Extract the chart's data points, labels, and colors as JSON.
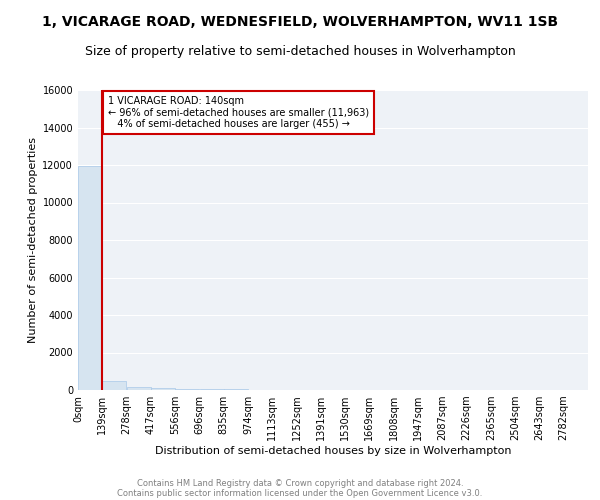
{
  "title": "1, VICARAGE ROAD, WEDNESFIELD, WOLVERHAMPTON, WV11 1SB",
  "subtitle": "Size of property relative to semi-detached houses in Wolverhampton",
  "xlabel": "Distribution of semi-detached houses by size in Wolverhampton",
  "ylabel": "Number of semi-detached properties",
  "footer1": "Contains HM Land Registry data © Crown copyright and database right 2024.",
  "footer2": "Contains public sector information licensed under the Open Government Licence v3.0.",
  "property_size": 140,
  "pct_smaller": 96,
  "count_smaller": 11963,
  "pct_larger": 4,
  "count_larger": 455,
  "bar_color": "#d6e4f0",
  "bar_edge_color": "#a8c8e8",
  "highlight_color": "#cc0000",
  "annotation_box_color": "#cc0000",
  "bin_width": 139,
  "bin_starts": [
    0,
    139,
    278,
    417,
    556,
    696,
    835,
    974,
    1113,
    1252,
    1391,
    1530,
    1669,
    1808,
    1947,
    2086,
    2225,
    2365,
    2504,
    2643
  ],
  "bin_labels": [
    "0sqm",
    "139sqm",
    "278sqm",
    "417sqm",
    "556sqm",
    "696sqm",
    "835sqm",
    "974sqm",
    "1113sqm",
    "1252sqm",
    "1391sqm",
    "1530sqm",
    "1669sqm",
    "1808sqm",
    "1947sqm",
    "2087sqm",
    "2226sqm",
    "2365sqm",
    "2504sqm",
    "2643sqm",
    "2782sqm"
  ],
  "bin_counts": [
    11963,
    455,
    180,
    120,
    80,
    50,
    35,
    25,
    18,
    14,
    10,
    8,
    6,
    5,
    4,
    3,
    3,
    2,
    2,
    1
  ],
  "ylim": [
    0,
    16000
  ],
  "xlim": [
    0,
    2921
  ],
  "bg_color": "#eef2f7",
  "grid_color": "#ffffff",
  "title_fontsize": 10,
  "subtitle_fontsize": 9,
  "ylabel_fontsize": 8,
  "xlabel_fontsize": 8,
  "tick_fontsize": 7,
  "footer_fontsize": 6
}
